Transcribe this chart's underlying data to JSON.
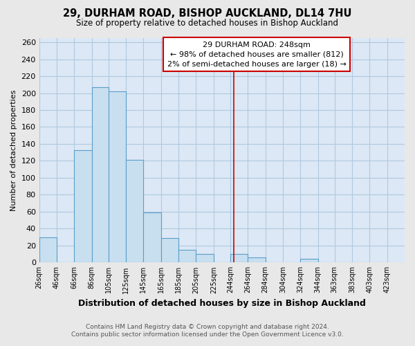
{
  "title": "29, DURHAM ROAD, BISHOP AUCKLAND, DL14 7HU",
  "subtitle": "Size of property relative to detached houses in Bishop Auckland",
  "xlabel": "Distribution of detached houses by size in Bishop Auckland",
  "ylabel": "Number of detached properties",
  "bar_color": "#c8dff0",
  "bar_edge_color": "#5a9ec9",
  "bar_left_edges": [
    26,
    46,
    66,
    86,
    105,
    125,
    145,
    165,
    185,
    205,
    225,
    244,
    264,
    284,
    304,
    324,
    344,
    363,
    383,
    403
  ],
  "bar_widths": [
    20,
    20,
    20,
    19,
    20,
    20,
    20,
    20,
    20,
    20,
    19,
    20,
    20,
    20,
    20,
    20,
    19,
    20,
    20,
    20
  ],
  "bar_heights": [
    30,
    0,
    133,
    207,
    202,
    121,
    59,
    29,
    15,
    10,
    0,
    10,
    6,
    0,
    0,
    4,
    0,
    0,
    0,
    0
  ],
  "tick_labels": [
    "26sqm",
    "46sqm",
    "66sqm",
    "86sqm",
    "105sqm",
    "125sqm",
    "145sqm",
    "165sqm",
    "185sqm",
    "205sqm",
    "225sqm",
    "244sqm",
    "264sqm",
    "284sqm",
    "304sqm",
    "324sqm",
    "344sqm",
    "363sqm",
    "383sqm",
    "403sqm",
    "423sqm"
  ],
  "tick_positions": [
    26,
    46,
    66,
    86,
    105,
    125,
    145,
    165,
    185,
    205,
    225,
    244,
    264,
    284,
    304,
    324,
    344,
    363,
    383,
    403,
    423
  ],
  "ylim": [
    0,
    265
  ],
  "yticks": [
    0,
    20,
    40,
    60,
    80,
    100,
    120,
    140,
    160,
    180,
    200,
    220,
    240,
    260
  ],
  "property_line_x": 248,
  "property_line_color": "#cc0000",
  "annotation_line1": "29 DURHAM ROAD: 248sqm",
  "annotation_line2": "← 98% of detached houses are smaller (812)",
  "annotation_line3": "2% of semi-detached houses are larger (18) →",
  "footer_line1": "Contains HM Land Registry data © Crown copyright and database right 2024.",
  "footer_line2": "Contains public sector information licensed under the Open Government Licence v3.0.",
  "bg_color": "#e8e8e8",
  "plot_bg_color": "#dce8f5",
  "grid_color": "#b0c8e0",
  "xlim_left": 26,
  "xlim_right": 443
}
